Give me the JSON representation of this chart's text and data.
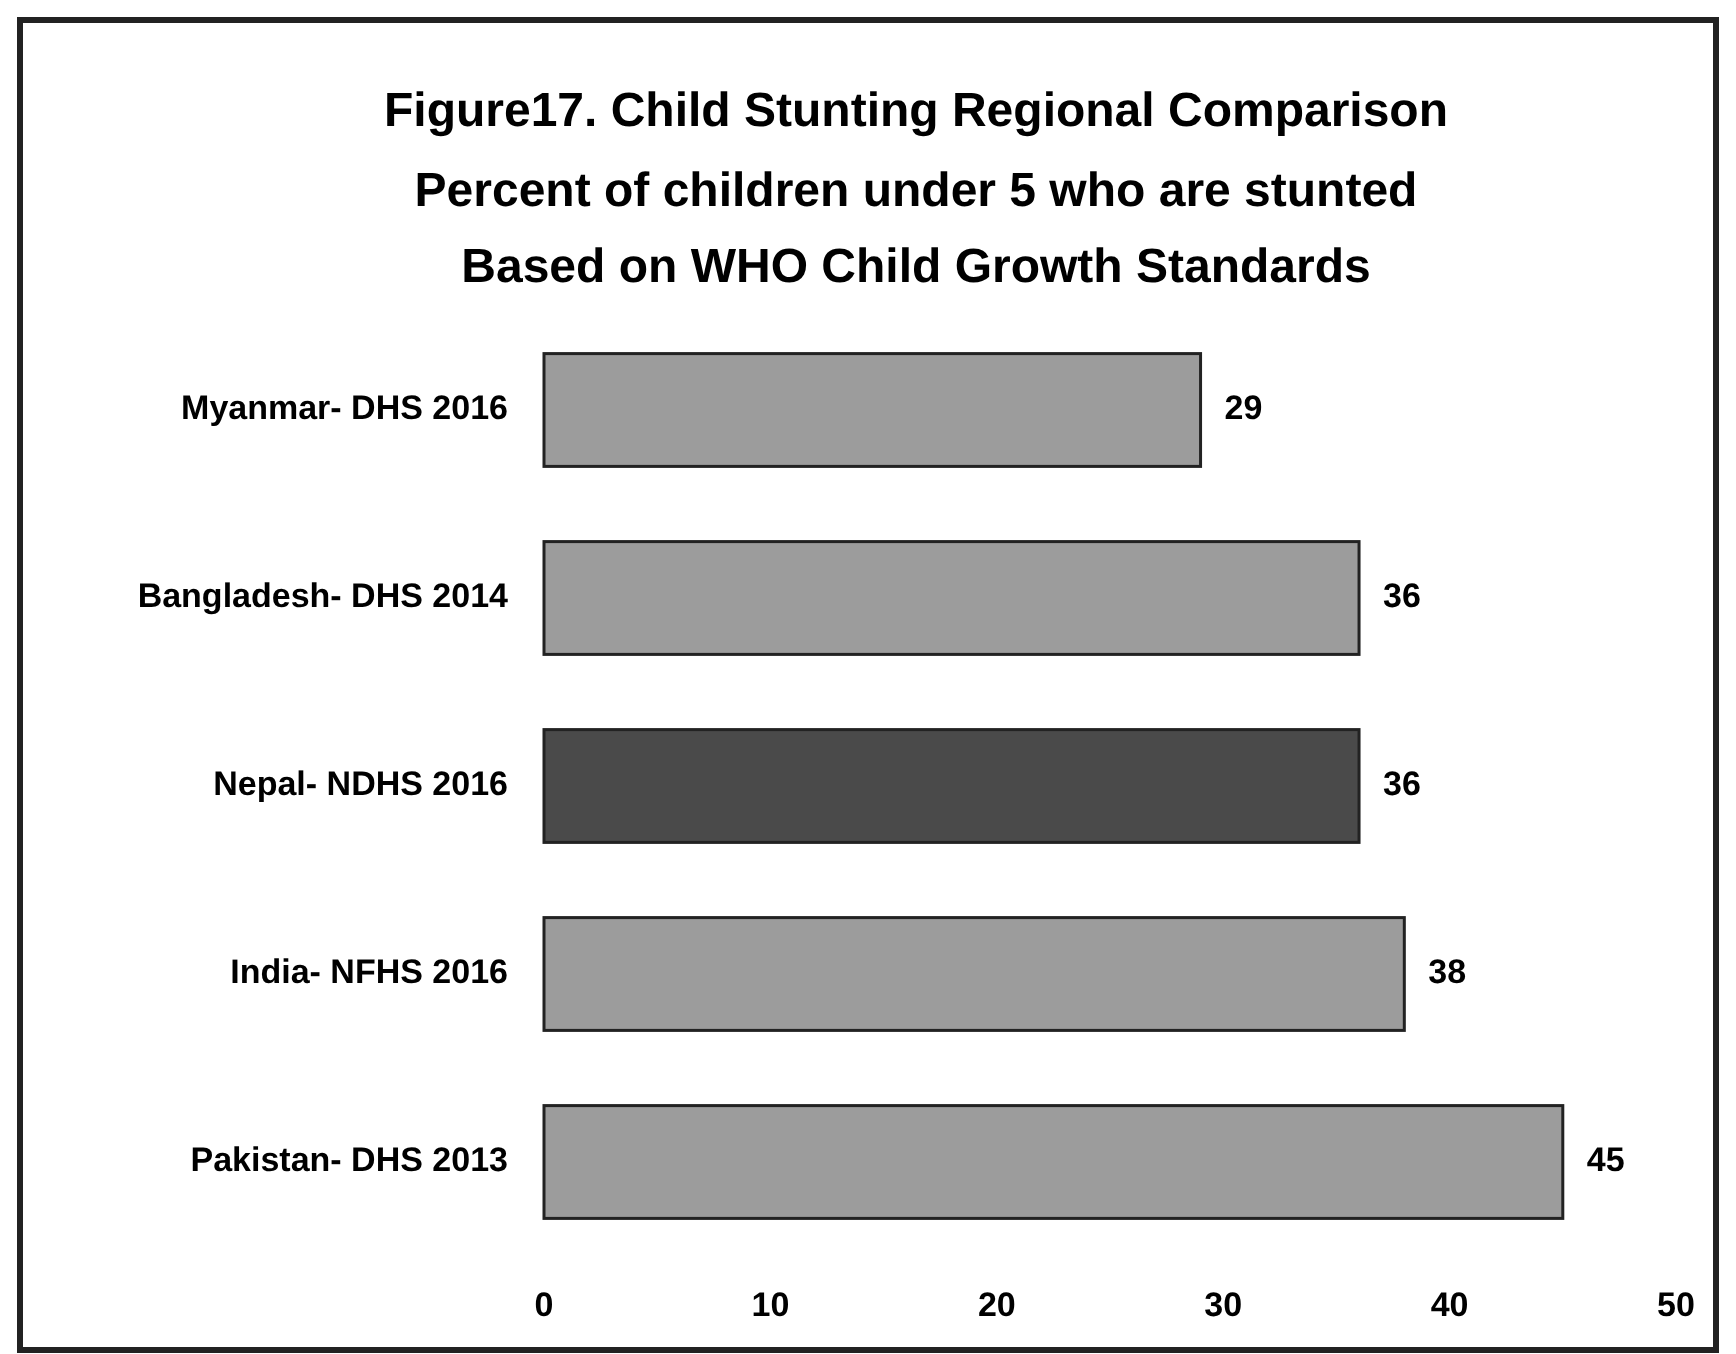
{
  "chart_data": {
    "type": "bar",
    "orientation": "horizontal",
    "title": "Figure17. Child Stunting Regional Comparison",
    "subtitle": "Percent of children under 5 who are stunted\nBased on WHO Child Growth Standards",
    "categories": [
      "Myanmar- DHS 2016",
      "Bangladesh- DHS 2014",
      "Nepal- NDHS 2016",
      "India- NFHS 2016",
      "Pakistan- DHS 2013"
    ],
    "values": [
      29,
      36,
      36,
      38,
      45
    ],
    "colors": [
      "#9c9c9c",
      "#9c9c9c",
      "#4a4a4a",
      "#9c9c9c",
      "#9c9c9c"
    ],
    "xlim": [
      0,
      50
    ],
    "xticks": [
      0,
      10,
      20,
      30,
      40,
      50
    ],
    "data_labels": true,
    "grid": false
  }
}
